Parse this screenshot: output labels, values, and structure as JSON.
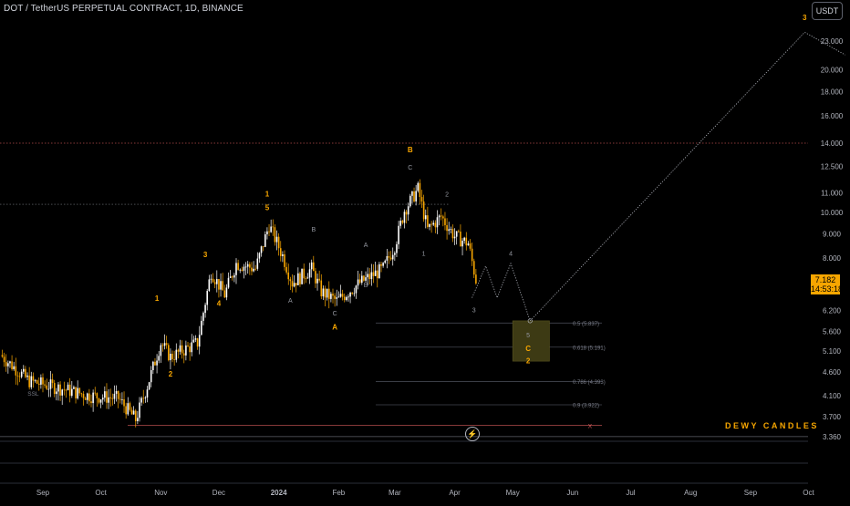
{
  "header": {
    "title": "DOT / TetherUS PERPETUAL CONTRACT, 1D, BINANCE",
    "currency_button": "USDT"
  },
  "price_tag": {
    "price": "7.182",
    "countdown": "14:53:18",
    "color": "#f7a600"
  },
  "watermark": "DEWY CANDLES",
  "icons": {
    "bolt": "lightning-bolt-icon"
  },
  "colors": {
    "background": "#000000",
    "candle_up": "#ffffff",
    "candle_down": "#f7a600",
    "wave_orange": "#f7a600",
    "wave_gray": "#9598a1",
    "target_box": "#3d3a14",
    "level_red": "#e06060"
  },
  "chart_data": {
    "type": "candlestick",
    "title": "DOT / TetherUS PERPETUAL CONTRACT, 1D, BINANCE",
    "y_scale": "log",
    "ylim": [
      3.2,
      26
    ],
    "y_ticks": [
      "23.000",
      "20.000",
      "18.000",
      "16.000",
      "14.000",
      "12.500",
      "11.000",
      "10.000",
      "9.000",
      "8.000",
      "6.200",
      "5.600",
      "5.100",
      "4.600",
      "4.100",
      "3.700",
      "3.360"
    ],
    "x_ticks": [
      "Sep",
      "Oct",
      "Nov",
      "Dec",
      "2024",
      "Feb",
      "Mar",
      "Apr",
      "May",
      "Jun",
      "Jul",
      "Aug",
      "Sep",
      "Oct"
    ],
    "current_price": 7.182,
    "horizontal_levels": [
      {
        "price": 14.0,
        "style": "dotted",
        "color": "#e06060"
      },
      {
        "price": 10.4,
        "style": "dotted",
        "color": "#9598a1"
      },
      {
        "price": 3.55,
        "style": "solid",
        "color": "#e06060"
      },
      {
        "price": 3.36,
        "style": "solid",
        "color": "#787b86"
      }
    ],
    "fib_levels": [
      {
        "label": "0.5 (5.837)",
        "value": 5.837
      },
      {
        "label": "0.618 (5.191)",
        "value": 5.191
      },
      {
        "label": "0.786 (4.393)",
        "value": 4.393
      },
      {
        "label": "0.9 (3.922)",
        "value": 3.922
      }
    ],
    "target_zone": {
      "from": "2024-05-01",
      "to": "2024-05-20",
      "high": 5.9,
      "low": 4.85
    },
    "projection_path": [
      {
        "date": "2024-04-10",
        "price": 6.6
      },
      {
        "date": "2024-04-17",
        "price": 7.7
      },
      {
        "date": "2024-04-23",
        "price": 6.6
      },
      {
        "date": "2024-04-30",
        "price": 7.8
      },
      {
        "date": "2024-05-10",
        "price": 5.9
      },
      {
        "date": "2024-09-29",
        "price": 24.0
      },
      {
        "date": "2024-10-20",
        "price": 21.5
      }
    ],
    "wave_labels": [
      {
        "text": "1",
        "date": "2023-10-30",
        "price": 6.5,
        "color": "orange"
      },
      {
        "text": "2",
        "date": "2023-11-06",
        "price": 4.5,
        "color": "orange"
      },
      {
        "text": "3",
        "date": "2023-11-24",
        "price": 8.05,
        "color": "orange"
      },
      {
        "text": "4",
        "date": "2023-12-01",
        "price": 6.35,
        "color": "orange"
      },
      {
        "text": "1",
        "date": "2023-12-26",
        "price": 10.8,
        "color": "orange"
      },
      {
        "text": "5",
        "date": "2023-12-26",
        "price": 10.1,
        "color": "orange"
      },
      {
        "text": "A",
        "date": "2024-01-07",
        "price": 6.45,
        "color": "gray"
      },
      {
        "text": "B",
        "date": "2024-01-19",
        "price": 9.1,
        "color": "gray"
      },
      {
        "text": "C",
        "date": "2024-01-30",
        "price": 6.05,
        "color": "gray"
      },
      {
        "text": "A",
        "date": "2024-01-30",
        "price": 5.65,
        "color": "orange"
      },
      {
        "text": "A",
        "date": "2024-02-15",
        "price": 8.45,
        "color": "gray"
      },
      {
        "text": "B",
        "date": "2024-02-15",
        "price": 6.95,
        "color": "gray"
      },
      {
        "text": "B",
        "date": "2024-03-09",
        "price": 13.4,
        "color": "orange"
      },
      {
        "text": "C",
        "date": "2024-03-09",
        "price": 12.3,
        "color": "gray"
      },
      {
        "text": "2",
        "date": "2024-03-28",
        "price": 10.8,
        "color": "gray"
      },
      {
        "text": "1",
        "date": "2024-03-16",
        "price": 8.1,
        "color": "gray"
      },
      {
        "text": "3",
        "date": "2024-04-11",
        "price": 6.15,
        "color": "gray"
      },
      {
        "text": "4",
        "date": "2024-04-30",
        "price": 8.1,
        "color": "gray"
      },
      {
        "text": "5",
        "date": "2024-05-09",
        "price": 5.45,
        "color": "gray"
      },
      {
        "text": "C",
        "date": "2024-05-09",
        "price": 5.1,
        "color": "orange"
      },
      {
        "text": "2",
        "date": "2024-05-09",
        "price": 4.8,
        "color": "orange"
      },
      {
        "text": "3",
        "date": "2024-09-29",
        "price": 25.5,
        "color": "orange"
      }
    ],
    "text_annotations": [
      {
        "text": "SSL",
        "date": "2023-08-27",
        "price": 4.1
      },
      {
        "text": "X",
        "date": "2024-06-10",
        "price": 3.5
      }
    ],
    "price_anchors": [
      {
        "date": "2023-08-10",
        "price": 5.0
      },
      {
        "date": "2023-08-25",
        "price": 4.4
      },
      {
        "date": "2023-09-10",
        "price": 4.25
      },
      {
        "date": "2023-09-25",
        "price": 4.1
      },
      {
        "date": "2023-10-10",
        "price": 4.05
      },
      {
        "date": "2023-10-19",
        "price": 3.65
      },
      {
        "date": "2023-10-25",
        "price": 4.3
      },
      {
        "date": "2023-11-01",
        "price": 5.3
      },
      {
        "date": "2023-11-06",
        "price": 4.95
      },
      {
        "date": "2023-11-20",
        "price": 5.3
      },
      {
        "date": "2023-11-27",
        "price": 7.5
      },
      {
        "date": "2023-12-04",
        "price": 6.7
      },
      {
        "date": "2023-12-10",
        "price": 7.8
      },
      {
        "date": "2023-12-20",
        "price": 7.6
      },
      {
        "date": "2023-12-27",
        "price": 9.4
      },
      {
        "date": "2024-01-03",
        "price": 8.1
      },
      {
        "date": "2024-01-08",
        "price": 7.1
      },
      {
        "date": "2024-01-18",
        "price": 7.6
      },
      {
        "date": "2024-01-23",
        "price": 6.8
      },
      {
        "date": "2024-01-31",
        "price": 6.5
      },
      {
        "date": "2024-02-12",
        "price": 7.1
      },
      {
        "date": "2024-02-24",
        "price": 7.6
      },
      {
        "date": "2024-03-01",
        "price": 8.5
      },
      {
        "date": "2024-03-06",
        "price": 10.1
      },
      {
        "date": "2024-03-13",
        "price": 11.2
      },
      {
        "date": "2024-03-18",
        "price": 9.2
      },
      {
        "date": "2024-03-25",
        "price": 9.8
      },
      {
        "date": "2024-04-01",
        "price": 8.9
      },
      {
        "date": "2024-04-08",
        "price": 8.6
      },
      {
        "date": "2024-04-12",
        "price": 7.2
      }
    ]
  }
}
